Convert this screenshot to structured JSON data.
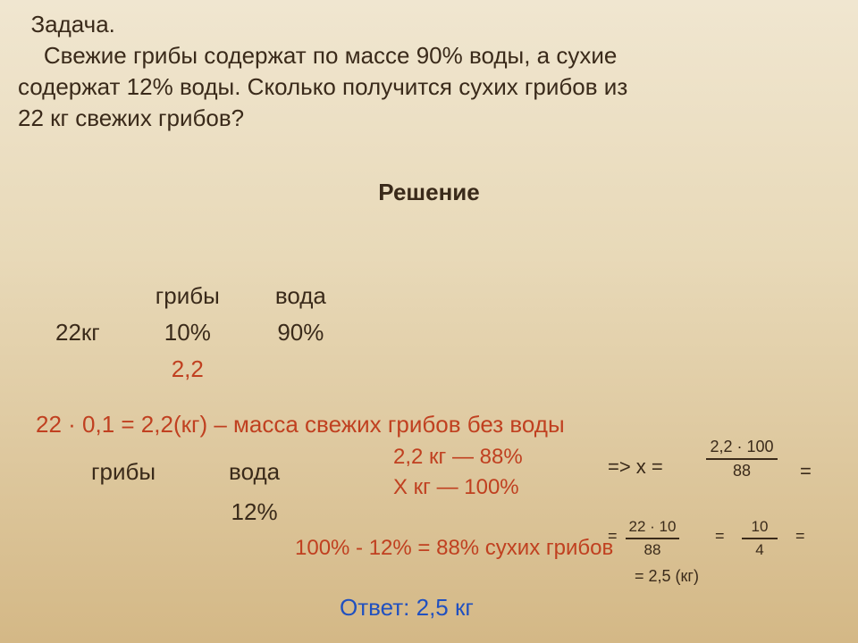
{
  "problem": {
    "title": "Задача.",
    "line1": "Свежие грибы содержат по массе 90% воды, а сухие",
    "line2": "содержат 12% воды. Сколько получится сухих грибов из",
    "line3": "22 кг свежих грибов?"
  },
  "solution_label": "Решение",
  "table1": {
    "h1": "грибы",
    "h2": "вода",
    "row_label": "22кг",
    "c1": "10%",
    "c2": "90%",
    "calc": "2,2"
  },
  "step1": "22 · 0,1 = 2,2(кг) – масса свежих грибов без воды",
  "table2": {
    "h1": "грибы",
    "h2": "вода",
    "c2": "12%"
  },
  "proportion": {
    "l1": "2,2 кг —  88%",
    "l2": "Х кг —  100%"
  },
  "arrow": "=> x =",
  "frac1": {
    "num": "2,2 · 100",
    "den": "88"
  },
  "step2": "100% - 12% = 88% сухих грибов",
  "frac2": {
    "num": "22 · 10",
    "den": "88"
  },
  "frac3": {
    "num": "10",
    "den": "4"
  },
  "result": "=  2,5 (кг)",
  "answer": "Ответ: 2,5 кг",
  "colors": {
    "text": "#3a2a1a",
    "red": "#c04020",
    "blue": "#2050c0",
    "bg_top": "#f0e6d0",
    "bg_bottom": "#d4b886"
  }
}
